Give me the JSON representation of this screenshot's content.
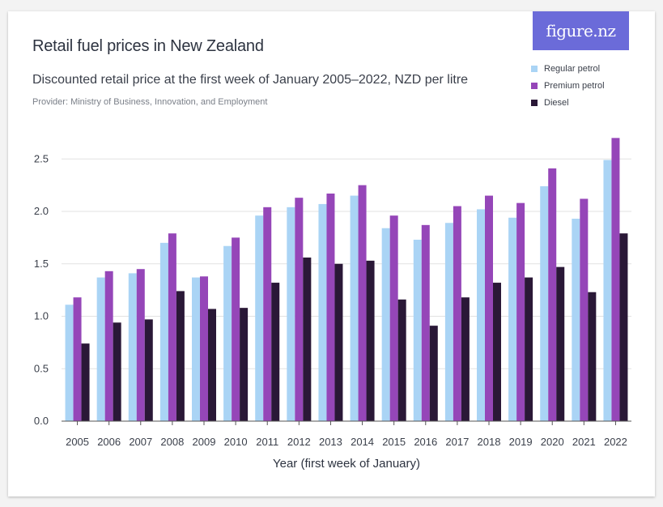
{
  "header": {
    "title": "Retail fuel prices in New Zealand",
    "subtitle": "Discounted retail price at the first week of January 2005–2022, NZD per litre",
    "provider": "Provider: Ministry of Business, Innovation, and Employment",
    "logo_text": "figure.nz"
  },
  "chart_data": {
    "type": "bar",
    "title": "Retail fuel prices in New Zealand",
    "subtitle": "Discounted retail price at the first week of January 2005–2022, NZD per litre",
    "xlabel": "Year (first week of January)",
    "ylabel": "",
    "ylim": [
      0,
      2.75
    ],
    "yticks": [
      "0.0",
      "0.5",
      "1.0",
      "1.5",
      "2.0",
      "2.5"
    ],
    "grid": true,
    "legend_position": "top-right",
    "categories": [
      "2005",
      "2006",
      "2007",
      "2008",
      "2009",
      "2010",
      "2011",
      "2012",
      "2013",
      "2014",
      "2015",
      "2016",
      "2017",
      "2018",
      "2019",
      "2020",
      "2021",
      "2022"
    ],
    "series": [
      {
        "name": "Regular petrol",
        "color": "#aad4f5",
        "values": [
          1.11,
          1.37,
          1.41,
          1.7,
          1.37,
          1.67,
          1.96,
          2.04,
          2.07,
          2.15,
          1.84,
          1.73,
          1.89,
          2.02,
          1.94,
          2.24,
          1.93,
          2.49
        ]
      },
      {
        "name": "Premium petrol",
        "color": "#9546b8",
        "values": [
          1.18,
          1.43,
          1.45,
          1.79,
          1.38,
          1.75,
          2.04,
          2.13,
          2.17,
          2.25,
          1.96,
          1.87,
          2.05,
          2.15,
          2.08,
          2.41,
          2.12,
          2.7
        ]
      },
      {
        "name": "Diesel",
        "color": "#2a1837",
        "values": [
          0.74,
          0.94,
          0.97,
          1.24,
          1.07,
          1.08,
          1.32,
          1.56,
          1.5,
          1.53,
          1.16,
          0.91,
          1.18,
          1.32,
          1.37,
          1.47,
          1.23,
          1.79
        ]
      }
    ]
  }
}
